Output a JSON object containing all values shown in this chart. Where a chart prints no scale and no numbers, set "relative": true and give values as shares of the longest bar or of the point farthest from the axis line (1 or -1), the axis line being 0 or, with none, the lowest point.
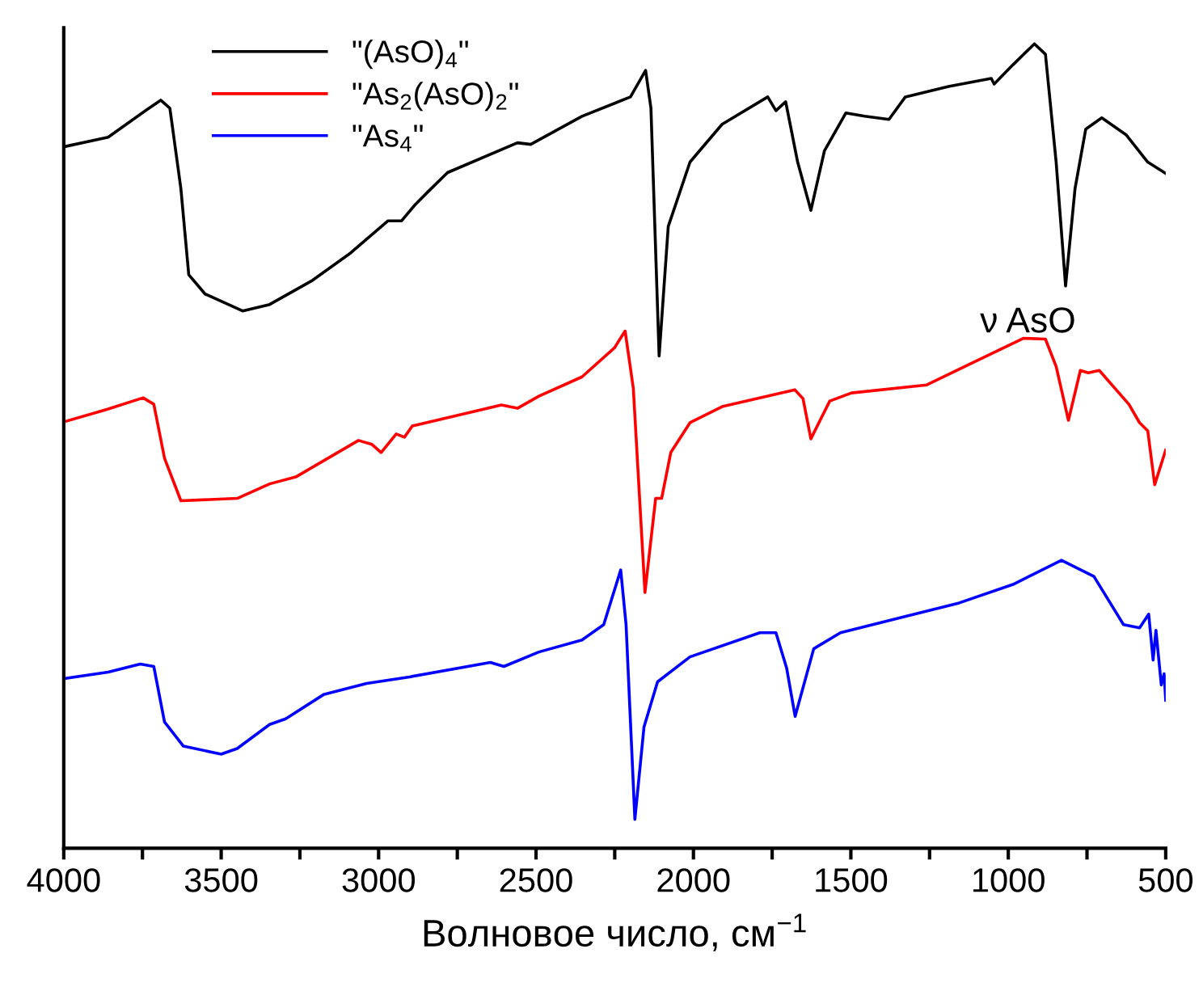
{
  "chart_data": {
    "type": "line",
    "relative": true,
    "xlabel": "Волновое число, см$^{−1}$",
    "xlim": [
      4000,
      500
    ],
    "xticks": [
      4000,
      {
        "value": 3750,
        "label": null
      },
      3500,
      {
        "value": 3250,
        "label": null
      },
      3000,
      {
        "value": 2750,
        "label": null
      },
      2500,
      {
        "value": 2250,
        "label": null
      },
      2000,
      {
        "value": 1750,
        "label": null
      },
      1500,
      {
        "value": 1250,
        "label": null
      },
      1000,
      {
        "value": 750,
        "label": null
      },
      500
    ],
    "legend": "top left",
    "grid": false,
    "marker": "none",
    "line_style": "solid",
    "annotations": [
      "ν AsO"
    ],
    "series": [
      {
        "name": "\"(AsO)$_{4}$\"",
        "color": "#000000",
        "x": [
          4000,
          3859,
          3740,
          3692,
          3663,
          3628,
          3603,
          3551,
          3432,
          3346,
          3210,
          3089,
          2970,
          2927,
          2884,
          2841,
          2781,
          2559,
          2517,
          2354,
          2200,
          2152,
          2135,
          2109,
          2080,
          2011,
          1909,
          1764,
          1738,
          1707,
          1669,
          1627,
          1584,
          1516,
          1456,
          1379,
          1327,
          1190,
          1054,
          1045,
          985,
          917,
          882,
          848,
          818,
          788,
          754,
          703,
          626,
          557,
          500
        ],
        "values": [
          0.872,
          0.884,
          0.917,
          0.93,
          0.92,
          0.82,
          0.713,
          0.689,
          0.668,
          0.676,
          0.706,
          0.74,
          0.78,
          0.78,
          0.8,
          0.817,
          0.84,
          0.877,
          0.875,
          0.91,
          0.934,
          0.967,
          0.92,
          0.612,
          0.773,
          0.853,
          0.9,
          0.934,
          0.917,
          0.928,
          0.853,
          0.793,
          0.867,
          0.914,
          0.91,
          0.906,
          0.934,
          0.947,
          0.957,
          0.95,
          0.974,
          1.0,
          0.987,
          0.853,
          0.699,
          0.82,
          0.894,
          0.908,
          0.887,
          0.853,
          0.839
        ]
      },
      {
        "name": "\"As$_{2}$(AsO)$_{2}$\"",
        "color": "#ff0000",
        "x": [
          4000,
          3859,
          3748,
          3714,
          3680,
          3628,
          3449,
          3346,
          3261,
          3064,
          3021,
          2992,
          2944,
          2918,
          2893,
          2610,
          2559,
          2491,
          2354,
          2251,
          2217,
          2191,
          2154,
          2120,
          2101,
          2072,
          2011,
          1909,
          1678,
          1652,
          1627,
          1567,
          1498,
          1259,
          1122,
          951,
          882,
          848,
          809,
          771,
          746,
          711,
          617,
          583,
          557,
          535,
          500
        ],
        "values": [
          0.53,
          0.546,
          0.56,
          0.552,
          0.485,
          0.432,
          0.435,
          0.453,
          0.462,
          0.507,
          0.502,
          0.492,
          0.515,
          0.511,
          0.525,
          0.551,
          0.547,
          0.562,
          0.586,
          0.622,
          0.643,
          0.572,
          0.318,
          0.435,
          0.435,
          0.492,
          0.529,
          0.549,
          0.57,
          0.559,
          0.509,
          0.556,
          0.566,
          0.576,
          0.602,
          0.634,
          0.633,
          0.599,
          0.532,
          0.594,
          0.591,
          0.594,
          0.552,
          0.529,
          0.519,
          0.452,
          0.495
        ]
      },
      {
        "name": "\"As$_{4}$\"",
        "color": "#0000ff",
        "x": [
          4000,
          3859,
          3757,
          3714,
          3680,
          3620,
          3500,
          3449,
          3346,
          3295,
          3175,
          3038,
          2902,
          2645,
          2602,
          2491,
          2354,
          2285,
          2231,
          2214,
          2186,
          2157,
          2114,
          2011,
          1789,
          1738,
          1704,
          1677,
          1618,
          1533,
          1156,
          985,
          831,
          728,
          634,
          583,
          554,
          540,
          531,
          514,
          505,
          500
        ],
        "values": [
          0.211,
          0.219,
          0.229,
          0.226,
          0.157,
          0.127,
          0.117,
          0.124,
          0.154,
          0.161,
          0.191,
          0.205,
          0.213,
          0.231,
          0.226,
          0.244,
          0.259,
          0.278,
          0.346,
          0.278,
          0.036,
          0.151,
          0.207,
          0.238,
          0.268,
          0.268,
          0.224,
          0.164,
          0.248,
          0.268,
          0.305,
          0.328,
          0.358,
          0.338,
          0.278,
          0.274,
          0.291,
          0.234,
          0.271,
          0.203,
          0.217,
          0.184
        ]
      }
    ]
  }
}
